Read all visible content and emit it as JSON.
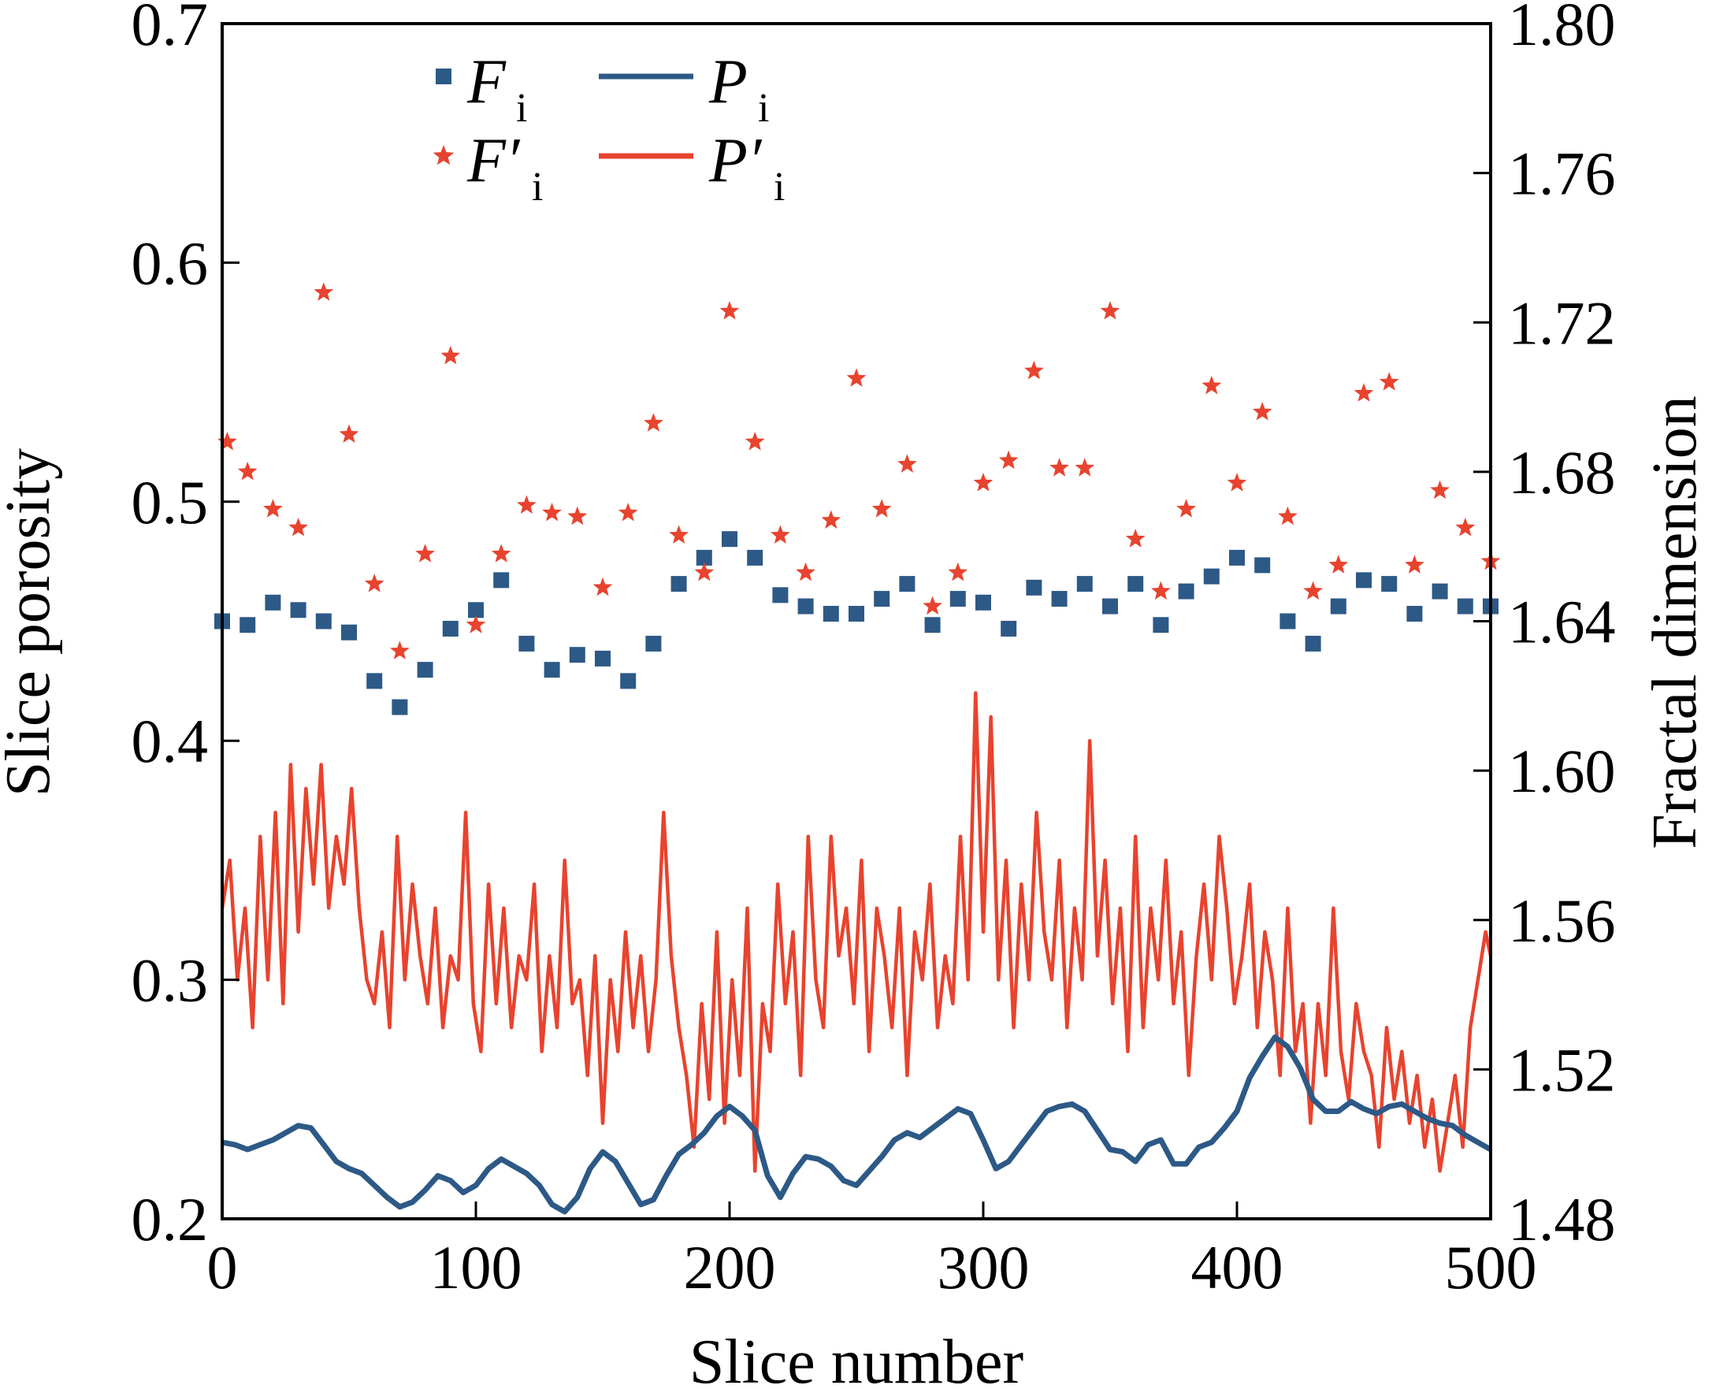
{
  "colors": {
    "blue": "#2d5986",
    "red": "#e8432e",
    "axis": "#000000"
  },
  "chart_data": {
    "type": "line",
    "title": "",
    "xlabel": "Slice number",
    "ylabel_left": "Slice porosity",
    "ylabel_right": "Fractal dimension",
    "xlim": [
      0,
      500
    ],
    "ylim_left": [
      0.2,
      0.7
    ],
    "ylim_right": [
      1.48,
      1.8
    ],
    "xticks": [
      0,
      100,
      200,
      300,
      400,
      500
    ],
    "xtick_labels": [
      "0",
      "100",
      "200",
      "300",
      "400",
      "500"
    ],
    "yticks_left": [
      0.2,
      0.3,
      0.4,
      0.5,
      0.6,
      0.7
    ],
    "ytick_labels_left": [
      "0.2",
      "0.3",
      "0.4",
      "0.5",
      "0.6",
      "0.7"
    ],
    "yticks_right": [
      1.48,
      1.52,
      1.56,
      1.6,
      1.64,
      1.68,
      1.72,
      1.76,
      1.8
    ],
    "ytick_labels_right": [
      "1.48",
      "1.52",
      "1.56",
      "1.60",
      "1.64",
      "1.68",
      "1.72",
      "1.76",
      "1.80"
    ],
    "legend": [
      {
        "key": "F",
        "label": "F",
        "sub": "i",
        "marker": "square",
        "color": "#2d5986",
        "axis": "right"
      },
      {
        "key": "Fp",
        "label": "F′",
        "sub": "i",
        "marker": "star",
        "color": "#e8432e",
        "axis": "right"
      },
      {
        "key": "P",
        "label": "P",
        "sub": "i",
        "marker": "line",
        "color": "#2d5986",
        "axis": "left"
      },
      {
        "key": "Pp",
        "label": "P′",
        "sub": "i",
        "marker": "line",
        "color": "#e8432e",
        "axis": "left"
      }
    ],
    "series": [
      {
        "name": "F_i",
        "axis": "right",
        "kind": "scatter",
        "marker": "square",
        "color": "#2d5986",
        "x": [
          0,
          10,
          20,
          30,
          40,
          50,
          60,
          70,
          80,
          90,
          100,
          110,
          120,
          130,
          140,
          150,
          160,
          170,
          180,
          190,
          200,
          210,
          220,
          230,
          240,
          250,
          260,
          270,
          280,
          290,
          300,
          310,
          320,
          330,
          340,
          350,
          360,
          370,
          380,
          390,
          400,
          410,
          420,
          430,
          440,
          450,
          460,
          470,
          480,
          490,
          500
        ],
        "values": [
          1.64,
          1.639,
          1.645,
          1.643,
          1.64,
          1.637,
          1.624,
          1.617,
          1.627,
          1.638,
          1.643,
          1.651,
          1.634,
          1.627,
          1.631,
          1.63,
          1.624,
          1.634,
          1.65,
          1.657,
          1.662,
          1.657,
          1.647,
          1.644,
          1.642,
          1.642,
          1.646,
          1.65,
          1.639,
          1.646,
          1.645,
          1.638,
          1.649,
          1.646,
          1.65,
          1.644,
          1.65,
          1.639,
          1.648,
          1.652,
          1.657,
          1.655,
          1.64,
          1.634,
          1.644,
          1.651,
          1.65,
          1.642,
          1.648,
          1.644,
          1.644
        ]
      },
      {
        "name": "F'_i",
        "axis": "right",
        "kind": "scatter",
        "marker": "star",
        "color": "#e8432e",
        "x": [
          2,
          10,
          20,
          30,
          40,
          50,
          60,
          70,
          80,
          90,
          100,
          110,
          120,
          130,
          140,
          150,
          160,
          170,
          180,
          190,
          200,
          210,
          220,
          230,
          240,
          250,
          260,
          270,
          280,
          290,
          300,
          310,
          320,
          330,
          340,
          350,
          360,
          370,
          380,
          390,
          400,
          410,
          420,
          430,
          440,
          450,
          460,
          470,
          480,
          490,
          500
        ],
        "values": [
          1.688,
          1.68,
          1.67,
          1.665,
          1.728,
          1.69,
          1.65,
          1.632,
          1.658,
          1.711,
          1.639,
          1.658,
          1.671,
          1.669,
          1.668,
          1.649,
          1.669,
          1.693,
          1.663,
          1.653,
          1.723,
          1.688,
          1.663,
          1.653,
          1.667,
          1.705,
          1.67,
          1.682,
          1.644,
          1.653,
          1.677,
          1.683,
          1.707,
          1.681,
          1.681,
          1.723,
          1.662,
          1.648,
          1.67,
          1.703,
          1.677,
          1.696,
          1.668,
          1.648,
          1.655,
          1.701,
          1.704,
          1.655,
          1.675,
          1.665,
          1.656
        ]
      },
      {
        "name": "P_i",
        "axis": "left",
        "kind": "line",
        "color": "#2d5986",
        "x": [
          0,
          5,
          10,
          15,
          20,
          25,
          30,
          35,
          40,
          45,
          50,
          55,
          60,
          65,
          70,
          75,
          80,
          85,
          90,
          95,
          100,
          105,
          110,
          115,
          120,
          125,
          130,
          135,
          140,
          145,
          150,
          155,
          160,
          165,
          170,
          175,
          180,
          185,
          190,
          195,
          200,
          205,
          210,
          215,
          220,
          225,
          230,
          235,
          240,
          245,
          250,
          255,
          260,
          265,
          270,
          275,
          280,
          285,
          290,
          295,
          300,
          305,
          310,
          315,
          320,
          325,
          330,
          335,
          340,
          345,
          350,
          355,
          360,
          365,
          370,
          375,
          380,
          385,
          390,
          395,
          400,
          405,
          410,
          415,
          420,
          425,
          430,
          435,
          440,
          445,
          450,
          455,
          460,
          465,
          470,
          475,
          480,
          485,
          490,
          495,
          500
        ],
        "values": [
          0.232,
          0.231,
          0.229,
          0.231,
          0.233,
          0.236,
          0.239,
          0.238,
          0.231,
          0.224,
          0.221,
          0.219,
          0.214,
          0.209,
          0.205,
          0.207,
          0.212,
          0.218,
          0.216,
          0.211,
          0.214,
          0.221,
          0.225,
          0.222,
          0.219,
          0.214,
          0.206,
          0.203,
          0.209,
          0.221,
          0.228,
          0.224,
          0.215,
          0.206,
          0.208,
          0.218,
          0.227,
          0.231,
          0.236,
          0.243,
          0.247,
          0.243,
          0.237,
          0.218,
          0.209,
          0.219,
          0.226,
          0.225,
          0.222,
          0.216,
          0.214,
          0.22,
          0.226,
          0.233,
          0.236,
          0.234,
          0.238,
          0.242,
          0.246,
          0.244,
          0.233,
          0.221,
          0.224,
          0.231,
          0.238,
          0.245,
          0.247,
          0.248,
          0.245,
          0.237,
          0.229,
          0.228,
          0.224,
          0.231,
          0.233,
          0.223,
          0.223,
          0.23,
          0.232,
          0.238,
          0.245,
          0.259,
          0.268,
          0.276,
          0.272,
          0.263,
          0.25,
          0.245,
          0.245,
          0.249,
          0.246,
          0.244,
          0.247,
          0.248,
          0.245,
          0.242,
          0.24,
          0.239,
          0.235,
          0.232,
          0.229
        ]
      },
      {
        "name": "P'_i",
        "axis": "left",
        "kind": "line",
        "color": "#e8432e",
        "x": [
          0,
          3,
          6,
          9,
          12,
          15,
          18,
          21,
          24,
          27,
          30,
          33,
          36,
          39,
          42,
          45,
          48,
          51,
          54,
          57,
          60,
          63,
          66,
          69,
          72,
          75,
          78,
          81,
          84,
          87,
          90,
          93,
          96,
          99,
          102,
          105,
          108,
          111,
          114,
          117,
          120,
          123,
          126,
          129,
          132,
          135,
          138,
          141,
          144,
          147,
          150,
          153,
          156,
          159,
          162,
          165,
          168,
          171,
          174,
          177,
          180,
          183,
          186,
          189,
          192,
          195,
          198,
          201,
          204,
          207,
          210,
          213,
          216,
          219,
          222,
          225,
          228,
          231,
          234,
          237,
          240,
          243,
          246,
          249,
          252,
          255,
          258,
          261,
          264,
          267,
          270,
          273,
          276,
          279,
          282,
          285,
          288,
          291,
          294,
          297,
          300,
          303,
          306,
          309,
          312,
          315,
          318,
          321,
          324,
          327,
          330,
          333,
          336,
          339,
          342,
          345,
          348,
          351,
          354,
          357,
          360,
          363,
          366,
          369,
          372,
          375,
          378,
          381,
          384,
          387,
          390,
          393,
          396,
          399,
          402,
          405,
          408,
          411,
          414,
          417,
          420,
          423,
          426,
          429,
          432,
          435,
          438,
          441,
          444,
          447,
          450,
          453,
          456,
          459,
          462,
          465,
          468,
          471,
          474,
          477,
          480,
          483,
          486,
          489,
          492,
          495,
          498,
          500
        ],
        "values": [
          0.33,
          0.35,
          0.3,
          0.33,
          0.28,
          0.36,
          0.3,
          0.37,
          0.29,
          0.39,
          0.32,
          0.38,
          0.34,
          0.39,
          0.33,
          0.36,
          0.34,
          0.38,
          0.33,
          0.3,
          0.29,
          0.32,
          0.28,
          0.36,
          0.3,
          0.34,
          0.31,
          0.29,
          0.33,
          0.28,
          0.31,
          0.3,
          0.37,
          0.29,
          0.27,
          0.34,
          0.29,
          0.33,
          0.28,
          0.31,
          0.3,
          0.34,
          0.27,
          0.31,
          0.28,
          0.35,
          0.29,
          0.3,
          0.26,
          0.31,
          0.24,
          0.3,
          0.27,
          0.32,
          0.28,
          0.31,
          0.27,
          0.3,
          0.37,
          0.31,
          0.28,
          0.26,
          0.23,
          0.29,
          0.25,
          0.32,
          0.24,
          0.3,
          0.26,
          0.33,
          0.22,
          0.29,
          0.27,
          0.34,
          0.29,
          0.32,
          0.26,
          0.36,
          0.3,
          0.28,
          0.36,
          0.31,
          0.33,
          0.29,
          0.35,
          0.27,
          0.33,
          0.31,
          0.28,
          0.33,
          0.26,
          0.32,
          0.3,
          0.34,
          0.28,
          0.31,
          0.29,
          0.36,
          0.3,
          0.42,
          0.32,
          0.41,
          0.3,
          0.35,
          0.28,
          0.34,
          0.3,
          0.37,
          0.32,
          0.3,
          0.35,
          0.28,
          0.33,
          0.3,
          0.4,
          0.31,
          0.35,
          0.29,
          0.33,
          0.27,
          0.36,
          0.28,
          0.33,
          0.3,
          0.35,
          0.29,
          0.32,
          0.26,
          0.31,
          0.34,
          0.3,
          0.36,
          0.33,
          0.29,
          0.31,
          0.34,
          0.28,
          0.32,
          0.3,
          0.26,
          0.33,
          0.27,
          0.29,
          0.24,
          0.29,
          0.26,
          0.33,
          0.27,
          0.25,
          0.29,
          0.27,
          0.26,
          0.23,
          0.28,
          0.25,
          0.27,
          0.24,
          0.26,
          0.23,
          0.25,
          0.22,
          0.24,
          0.26,
          0.23,
          0.28,
          0.3,
          0.32,
          0.31
        ]
      }
    ]
  }
}
